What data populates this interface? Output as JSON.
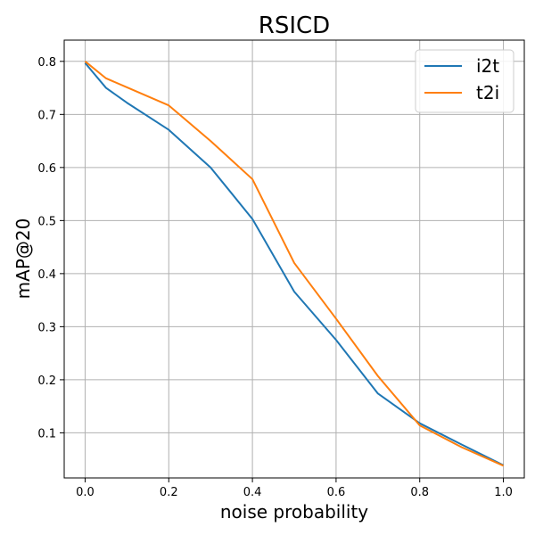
{
  "chart_data": {
    "type": "line",
    "title": "RSICD",
    "xlabel": "noise probability",
    "ylabel": "mAP@20",
    "xlim": [
      -0.05,
      1.05
    ],
    "ylim": [
      0.015,
      0.84
    ],
    "xticks": [
      0.0,
      0.2,
      0.4,
      0.6,
      0.8,
      1.0
    ],
    "xtick_labels": [
      "0.0",
      "0.2",
      "0.4",
      "0.6",
      "0.8",
      "1.0"
    ],
    "yticks": [
      0.1,
      0.2,
      0.3,
      0.4,
      0.5,
      0.6,
      0.7,
      0.8
    ],
    "ytick_labels": [
      "0.1",
      "0.2",
      "0.3",
      "0.4",
      "0.5",
      "0.6",
      "0.7",
      "0.8"
    ],
    "grid": true,
    "legend_position": "top-right",
    "series": [
      {
        "name": "i2t",
        "color": "#1f77b4",
        "x": [
          0.0,
          0.05,
          0.1,
          0.2,
          0.3,
          0.4,
          0.5,
          0.6,
          0.7,
          0.8,
          0.9,
          1.0
        ],
        "y": [
          0.797,
          0.75,
          0.722,
          0.671,
          0.6,
          0.503,
          0.366,
          0.275,
          0.174,
          0.118,
          0.078,
          0.039
        ]
      },
      {
        "name": "t2i",
        "color": "#ff7f0e",
        "x": [
          0.0,
          0.05,
          0.1,
          0.2,
          0.3,
          0.4,
          0.5,
          0.6,
          0.7,
          0.8,
          0.9,
          1.0
        ],
        "y": [
          0.8,
          0.768,
          0.751,
          0.717,
          0.65,
          0.578,
          0.42,
          0.315,
          0.207,
          0.114,
          0.073,
          0.038
        ]
      }
    ]
  }
}
